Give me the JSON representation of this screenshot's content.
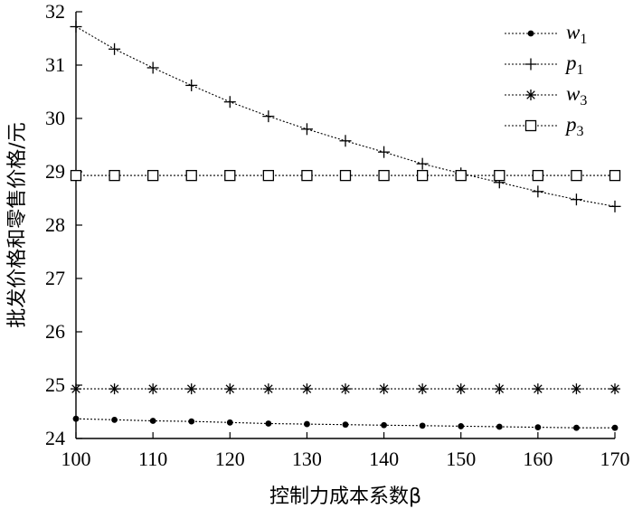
{
  "chart_data": {
    "type": "line",
    "xlabel": "控制力成本系数β",
    "ylabel": "批发价格和零售价格/元",
    "xlim": [
      100,
      170
    ],
    "ylim": [
      24,
      32
    ],
    "xticks": [
      100,
      110,
      120,
      130,
      140,
      150,
      160,
      170
    ],
    "yticks": [
      24,
      25,
      26,
      27,
      28,
      29,
      30,
      31,
      32
    ],
    "grid": false,
    "legend_position": "top-right",
    "x": [
      100,
      105,
      110,
      115,
      120,
      125,
      130,
      135,
      140,
      145,
      150,
      155,
      160,
      165,
      170
    ],
    "series": [
      {
        "name": "w",
        "subscript": "1",
        "marker": "dot",
        "values": [
          24.37,
          24.35,
          24.33,
          24.32,
          24.3,
          24.28,
          24.27,
          24.26,
          24.25,
          24.24,
          24.23,
          24.22,
          24.21,
          24.2,
          24.2
        ]
      },
      {
        "name": "p",
        "subscript": "1",
        "marker": "plus",
        "values": [
          31.72,
          31.3,
          30.95,
          30.62,
          30.31,
          30.04,
          29.8,
          29.58,
          29.37,
          29.15,
          28.97,
          28.8,
          28.63,
          28.48,
          28.35
        ]
      },
      {
        "name": "w",
        "subscript": "3",
        "marker": "asterisk",
        "values": [
          24.93,
          24.93,
          24.93,
          24.93,
          24.93,
          24.93,
          24.93,
          24.93,
          24.93,
          24.93,
          24.93,
          24.93,
          24.93,
          24.93,
          24.93
        ]
      },
      {
        "name": "p",
        "subscript": "3",
        "marker": "square",
        "values": [
          28.93,
          28.93,
          28.93,
          28.93,
          28.93,
          28.93,
          28.93,
          28.93,
          28.93,
          28.93,
          28.93,
          28.93,
          28.93,
          28.93,
          28.93
        ]
      }
    ]
  }
}
